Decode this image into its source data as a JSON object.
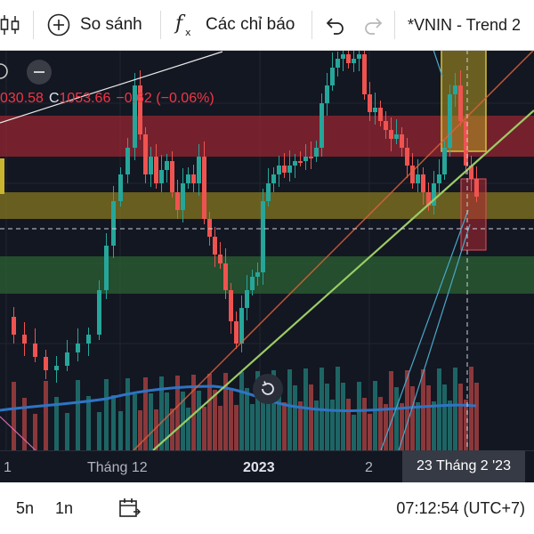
{
  "toolbar": {
    "compare_label": "So sánh",
    "indicators_label": "Các chỉ báo",
    "layout_title": "*VNIN - Trend 2"
  },
  "legend": {
    "low": "030.58",
    "close_prefix": "C",
    "close": "1053.66",
    "change": "−0.62 (−0.06%)"
  },
  "time_axis": {
    "ticks": [
      "1",
      "Tháng 12",
      "2023",
      "2"
    ],
    "crosshair_label": "23 Tháng 2 '23"
  },
  "bottom_bar": {
    "range_5d": "5n",
    "range_1d": "1n",
    "time": "07:12:54 (UTC+7)"
  },
  "colors": {
    "up": "#26a69a",
    "down": "#ef5350",
    "background": "#131722",
    "zone_red": "#b22833",
    "zone_yellow": "#9b8a1f",
    "zone_green": "#2e6b35",
    "trend_green": "#9ccc65",
    "trend_orange": "#e0603a",
    "ma_blue": "#2962ff"
  },
  "icons": [
    "candles-icon",
    "plus-circle-icon",
    "fx-icon",
    "undo-icon",
    "redo-icon",
    "minus-icon",
    "reset-icon",
    "calendar-icon"
  ]
}
